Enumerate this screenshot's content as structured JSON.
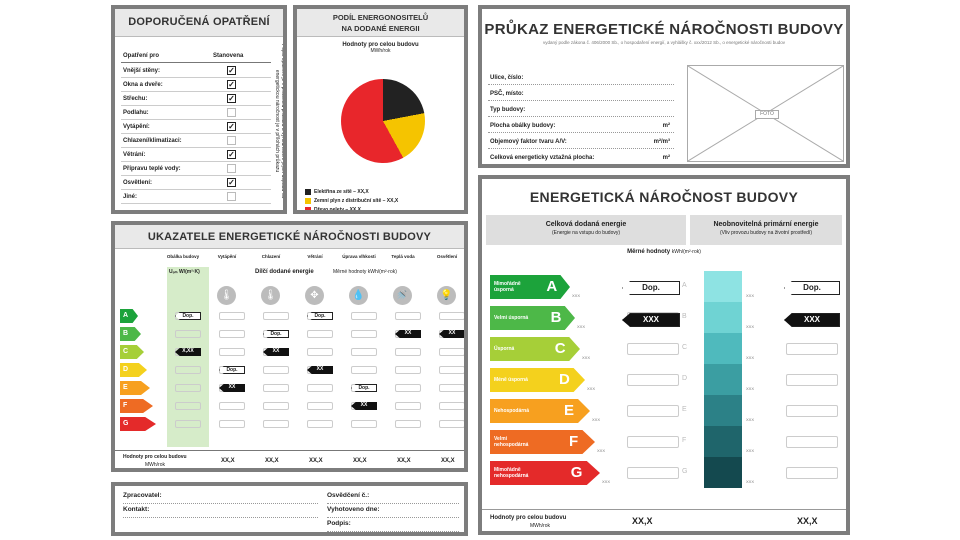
{
  "opatreni": {
    "title": "DOPORUČENÁ OPATŘENÍ",
    "col_for": "Opatření pro",
    "col_set": "Stanovena",
    "rows": [
      {
        "label": "Vnější stěny:",
        "checked": true
      },
      {
        "label": "Okna a dveře:",
        "checked": true
      },
      {
        "label": "Střechu:",
        "checked": true
      },
      {
        "label": "Podlahu:",
        "checked": false
      },
      {
        "label": "Vytápění:",
        "checked": true
      },
      {
        "label": "Chlazení/klimatizaci:",
        "checked": false
      },
      {
        "label": "Větrání:",
        "checked": true
      },
      {
        "label": "Přípravu teplé vody:",
        "checked": false
      },
      {
        "label": "Osvětlení:",
        "checked": true
      },
      {
        "label": "Jiné:",
        "checked": false
      }
    ],
    "vertical_note": "Popis opatření je v protokolu průkazu a vyhodnocení jejich dopadu na energetickou náročnost je v přílohách průkazu",
    "check_mark": "☑"
  },
  "podil": {
    "title_line1": "PODÍL ENERGONOSITELŮ",
    "title_line2": "NA DODANÉ ENERGII",
    "subtitle": "Hodnoty pro celou budovu",
    "unit": "MWh/rok",
    "legend": [
      {
        "label": "Elektřina ze sítě – XX,X",
        "color": "#222222"
      },
      {
        "label": "Zemní plyn z distribuční sítě – XX,X",
        "color": "#f5c400"
      },
      {
        "label": "Dřevo pelety – XX,X",
        "color": "#e8262b"
      }
    ],
    "shares": [
      0.22,
      0.2,
      0.58
    ]
  },
  "prukaz": {
    "title": "PRŮKAZ ENERGETICKÉ NÁROČNOSTI BUDOVY",
    "subtitle": "vydaný podle zákona č. 406/2000 Sb., o hospodaření energií, a vyhlášky č. xxx/2012 Sb., o energetické náročnosti budov",
    "rows": [
      {
        "label": "Ulice, číslo:",
        "unit": ""
      },
      {
        "label": "PSČ, místo:",
        "unit": ""
      },
      {
        "label": "Typ budovy:",
        "unit": ""
      },
      {
        "label": "Plocha obálky budovy:",
        "unit": "m²"
      },
      {
        "label": "Objemový faktor tvaru A/V:",
        "unit": "m²/m³"
      },
      {
        "label": "Celková energeticky vztažná plocha:",
        "unit": "m²"
      }
    ],
    "photo": "FOTO"
  },
  "energeticka": {
    "title": "ENERGETICKÁ NÁROČNOST BUDOVY",
    "col1_title": "Celková dodaná energie",
    "col1_sub": "(Energie na vstupu do budovy)",
    "col2_title": "Neobnovitelná primární energie",
    "col2_sub": "(Vliv provozu budovy na životní prostředí)",
    "merne": "Měrné hodnoty",
    "merne_unit": "kWh/(m²·rok)",
    "classes": [
      {
        "letter": "A",
        "label": "Mimořádně úsporná",
        "color": "#1ca33b",
        "teal": "#8ee3e3"
      },
      {
        "letter": "B",
        "label": "Velmi úsporná",
        "color": "#4db848",
        "teal": "#6fd3d3"
      },
      {
        "letter": "C",
        "label": "Úsporná",
        "color": "#a6cf38",
        "teal": "#4fbabd"
      },
      {
        "letter": "D",
        "label": "Méně úsporná",
        "color": "#f4d11d",
        "teal": "#3b9ea2"
      },
      {
        "letter": "E",
        "label": "Nehospodárná",
        "color": "#f7a01f",
        "teal": "#2c8187"
      },
      {
        "letter": "F",
        "label": "Velmi nehospodárná",
        "color": "#ee6b23",
        "teal": "#1f656b"
      },
      {
        "letter": "G",
        "label": "Mimořádně nehospodárná",
        "color": "#e42a2a",
        "teal": "#14494f"
      }
    ],
    "xxx": "XXX",
    "dop": "Dop.",
    "value_tag": "XXX",
    "footer_label": "Hodnoty pro celou budovu",
    "footer_unit": "MWh/rok",
    "footer_val1": "XX,X",
    "footer_val2": "XX,X"
  },
  "ukazatele": {
    "title": "UKAZATELE ENERGETICKÉ NÁROČNOSTI BUDOVY",
    "columns": [
      "Obálka budovy",
      "Vytápění",
      "Chlazení",
      "Větrání",
      "Úprava vlhkosti",
      "Teplá voda",
      "Osvětlení"
    ],
    "uem": "Uₑₘ W/(m²·K)",
    "dilci": "Dílčí dodané energie",
    "merne": "Měrné hodnoty",
    "merne_unit": "kWh/(m²·rok)",
    "classes": [
      "A",
      "B",
      "C",
      "D",
      "E",
      "F",
      "G"
    ],
    "class_colors": [
      "#1ca33b",
      "#4db848",
      "#a6cf38",
      "#f4d11d",
      "#f7a01f",
      "#ee6b23",
      "#e42a2a"
    ],
    "dop": "Dop.",
    "xx": "XX",
    "xxx": "X,XX",
    "footer_label": "Hodnoty pro celou budovu",
    "footer_unit": "MWh/rok",
    "footer_values": [
      "XX,X",
      "XX,X",
      "XX,X",
      "XX,X",
      "XX,X",
      "XX,X"
    ]
  },
  "podpisy": {
    "zpracovatel": "Zpracovatel:",
    "kontakt": "Kontakt:",
    "osvedceni": "Osvědčení č.:",
    "vyhotoveno": "Vyhotoveno dne:",
    "podpis": "Podpis:"
  }
}
